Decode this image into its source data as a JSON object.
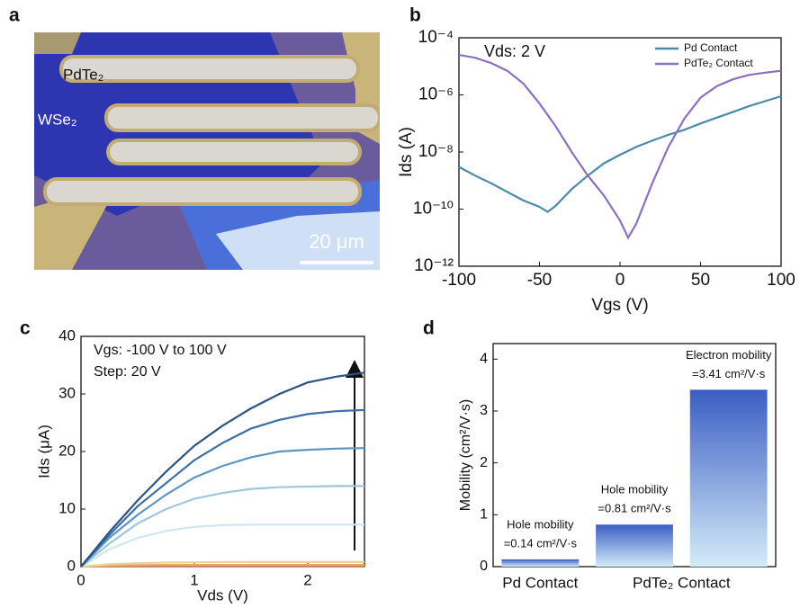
{
  "panel_labels": [
    "a",
    "b",
    "c",
    "d"
  ],
  "image": {
    "labels": [
      "PdTe₂",
      "WSe₂"
    ],
    "scale_bar": "20 μm"
  },
  "chart_data": [
    {
      "type": "line",
      "yscale": "log",
      "xlabel": "Vgs (V)",
      "ylabel": "Ids (A)",
      "annotations": [
        "Vds: 2 V"
      ],
      "legend": "upper right",
      "x": [
        -100,
        -90,
        -80,
        -70,
        -60,
        -50,
        -45,
        -40,
        -30,
        -20,
        -10,
        0,
        5,
        10,
        20,
        30,
        40,
        50,
        60,
        70,
        80,
        90,
        100
      ],
      "series": [
        {
          "name": "Pd Contact",
          "color": "#4a8aab",
          "values": [
            3e-09,
            1.5e-09,
            8e-10,
            4e-10,
            2e-10,
            1.2e-10,
            8e-11,
            1.3e-10,
            5e-10,
            1.5e-09,
            4e-09,
            8e-09,
            1.1e-08,
            1.5e-08,
            2.5e-08,
            4e-08,
            6e-08,
            1e-07,
            1.6e-07,
            2.5e-07,
            4e-07,
            6e-07,
            9e-07
          ]
        },
        {
          "name": "PdTe₂ Contact",
          "color": "#8a70c2",
          "values": [
            2.5e-05,
            2e-05,
            1.3e-05,
            7e-06,
            2.5e-06,
            5e-07,
            2e-07,
            8e-08,
            1e-08,
            1.5e-09,
            3e-10,
            4e-11,
            1e-11,
            3e-11,
            8e-10,
            1.5e-08,
            1.5e-07,
            8e-07,
            2e-06,
            3.5e-06,
            5e-06,
            6e-06,
            7e-06
          ]
        }
      ],
      "xlim": [
        -100,
        100
      ],
      "xticks": [
        -100,
        -50,
        0,
        50,
        100
      ],
      "ylim": [
        1e-12,
        0.0001
      ],
      "yticks": [
        {
          "value": 1e-12,
          "label": "10⁻¹²"
        },
        {
          "value": 1e-10,
          "label": "10⁻¹⁰"
        },
        {
          "value": 1e-08,
          "label": "10⁻⁸"
        },
        {
          "value": 1e-06,
          "label": "10⁻⁶"
        },
        {
          "value": 0.0001,
          "label": "10⁻⁴"
        }
      ]
    },
    {
      "type": "line",
      "xlabel": "Vds (V)",
      "ylabel": "Ids (μA)",
      "annotations": [
        "Vgs: -100 V to 100 V",
        "Step: 20 V"
      ],
      "x": [
        0,
        0.25,
        0.5,
        0.75,
        1,
        1.25,
        1.5,
        1.75,
        2,
        2.25,
        2.5
      ],
      "series": [
        {
          "color": "#d06a4a",
          "values": [
            0,
            0.05,
            0.08,
            0.1,
            0.1,
            0.1,
            0.1,
            0.1,
            0.1,
            0.1,
            0.1
          ]
        },
        {
          "color": "#e8a868",
          "values": [
            0,
            0.15,
            0.25,
            0.3,
            0.3,
            0.3,
            0.3,
            0.3,
            0.3,
            0.3,
            0.3
          ]
        },
        {
          "color": "#e8d49a",
          "values": [
            0,
            0.4,
            0.6,
            0.7,
            0.75,
            0.8,
            0.8,
            0.8,
            0.8,
            0.8,
            0.8
          ]
        },
        {
          "color": "#cfe6f1",
          "values": [
            0,
            3,
            5,
            6.2,
            6.9,
            7.2,
            7.3,
            7.3,
            7.3,
            7.3,
            7.3
          ]
        },
        {
          "color": "#9ec6de",
          "values": [
            0,
            4,
            7.5,
            10,
            11.8,
            12.8,
            13.5,
            13.8,
            13.9,
            14,
            14
          ]
        },
        {
          "color": "#5e96c2",
          "values": [
            0,
            5,
            9,
            12.5,
            15.5,
            17.5,
            19,
            20,
            20.3,
            20.5,
            20.6
          ]
        },
        {
          "color": "#3b6fa6",
          "values": [
            0,
            5.5,
            10.5,
            14.5,
            18.5,
            21.5,
            24,
            25.5,
            26.5,
            27,
            27.2
          ]
        },
        {
          "color": "#2b5383",
          "values": [
            0,
            6,
            11.5,
            16.5,
            21,
            24.5,
            27.5,
            30,
            32,
            33,
            33.7
          ]
        }
      ],
      "xlim": [
        0,
        2.5
      ],
      "xticks": [
        0,
        1,
        2
      ],
      "ylim": [
        0,
        40
      ],
      "yticks": [
        0,
        10,
        20,
        30,
        40
      ]
    },
    {
      "type": "bar",
      "ylabel": "Mobility (cm²/V·s)",
      "color": "#3a5ec4",
      "categories": [
        "Pd Contact",
        "PdTe₂ Contact",
        null
      ],
      "bar_labels": [
        "Hole mobility",
        "Hole mobility",
        "Electron mobility"
      ],
      "values": [
        0.14,
        0.81,
        3.41
      ],
      "value_labels": [
        "=0.14 cm²/V·s",
        "=0.81 cm²/V·s",
        "=3.41 cm²/V·s"
      ],
      "ylim": [
        0,
        4.3
      ],
      "yticks": [
        0,
        1,
        2,
        3,
        4
      ]
    }
  ]
}
